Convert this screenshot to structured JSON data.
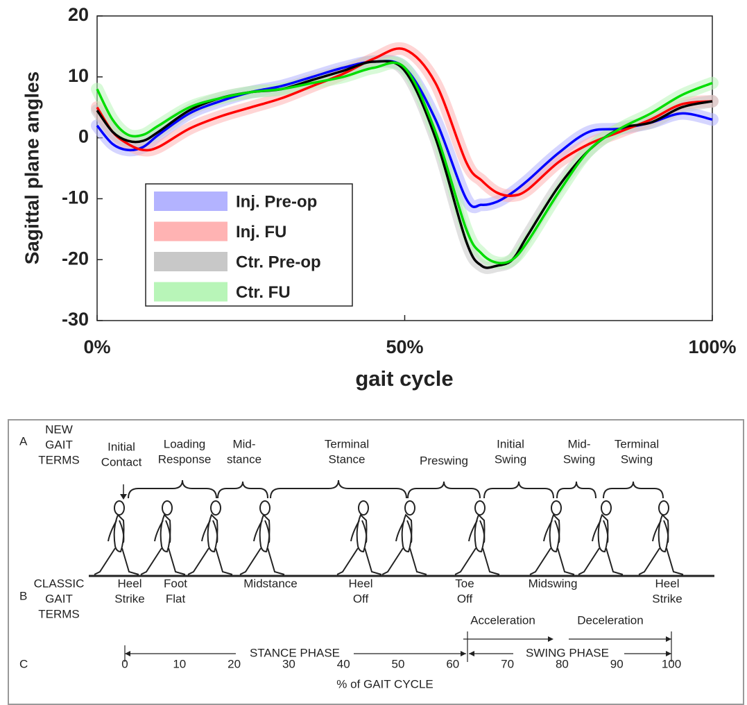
{
  "chart_data": {
    "type": "line",
    "ylabel": "Sagittal plane angles",
    "xlabel": "gait cycle",
    "x": [
      0,
      2.5,
      5,
      7.5,
      10,
      15,
      20,
      25,
      30,
      35,
      40,
      45,
      50,
      55,
      60,
      62.5,
      65,
      67.5,
      70,
      75,
      80,
      85,
      90,
      95,
      100
    ],
    "series": [
      {
        "name": "Inj. Pre-op",
        "color": "#0000ff",
        "band_color": "#b3b3ff",
        "values": [
          2,
          -1,
          -2,
          -1.5,
          0.5,
          4,
          6,
          7.5,
          8.5,
          10,
          11.5,
          12.5,
          11.5,
          3,
          -10,
          -11,
          -10.5,
          -9,
          -7,
          -2.5,
          1,
          1.5,
          2.5,
          4,
          3
        ]
      },
      {
        "name": "Inj. FU",
        "color": "#ff0000",
        "band_color": "#ffb3b3",
        "values": [
          5,
          1,
          -1,
          -2,
          -1.5,
          1.5,
          3.5,
          5,
          6.5,
          8.5,
          10.5,
          13,
          14.5,
          9,
          -4,
          -7,
          -9,
          -9.5,
          -8.5,
          -4,
          -1,
          1,
          3,
          5.5,
          6
        ]
      },
      {
        "name": "Ctr. Pre-op",
        "color": "#000000",
        "band_color": "#c8c8c8",
        "values": [
          4.5,
          1,
          -0.5,
          -0.5,
          1,
          4.5,
          6.5,
          7.5,
          8,
          9.5,
          11,
          12.5,
          11,
          0,
          -17,
          -21,
          -21,
          -20,
          -16,
          -8,
          -2,
          1.5,
          2.5,
          5,
          6
        ]
      },
      {
        "name": "Ctr. FU",
        "color": "#00dd00",
        "band_color": "#b8f5b8",
        "values": [
          8,
          3,
          0.5,
          0.5,
          2,
          5,
          6.5,
          7.5,
          8,
          9,
          10,
          11.5,
          11.5,
          1,
          -15,
          -19,
          -20.5,
          -20,
          -17,
          -9,
          -2,
          1.5,
          4,
          7,
          9
        ]
      }
    ],
    "xlim": [
      0,
      100
    ],
    "ylim": [
      -30,
      20
    ],
    "xticks": [
      {
        "value": 0,
        "label": "0%"
      },
      {
        "value": 50,
        "label": "50%"
      },
      {
        "value": 100,
        "label": "100%"
      }
    ],
    "yticks": [
      -30,
      -20,
      -10,
      0,
      10,
      20
    ],
    "legend": "lower left"
  },
  "diagram": {
    "row_a": "A",
    "row_a_title": [
      "NEW",
      "GAIT",
      "TERMS"
    ],
    "row_b": "B",
    "row_b_title": [
      "CLASSIC",
      "GAIT",
      "TERMS"
    ],
    "row_c": "C",
    "new_terms": [
      [
        "Initial",
        "Contact"
      ],
      [
        "Loading",
        "Response"
      ],
      [
        "Mid-",
        "stance"
      ],
      [
        "Terminal",
        "Stance"
      ],
      [
        "Preswing"
      ],
      [
        "Initial",
        "Swing"
      ],
      [
        "Mid-",
        "Swing"
      ],
      [
        "Terminal",
        "Swing"
      ]
    ],
    "classic_terms": [
      [
        "Heel",
        "Strike"
      ],
      [
        "Foot",
        "Flat"
      ],
      [
        "Midstance"
      ],
      [
        "Heel",
        "Off"
      ],
      [
        "Toe",
        "Off"
      ],
      [
        "Midswing"
      ],
      [
        "Heel",
        "Strike"
      ]
    ],
    "acceleration": "Acceleration",
    "deceleration": "Deceleration",
    "stance_phase": "STANCE PHASE",
    "swing_phase": "SWING PHASE",
    "scale": [
      "0",
      "10",
      "20",
      "30",
      "40",
      "50",
      "60",
      "70",
      "80",
      "90",
      "100"
    ],
    "scale_title": "% of GAIT CYCLE"
  }
}
